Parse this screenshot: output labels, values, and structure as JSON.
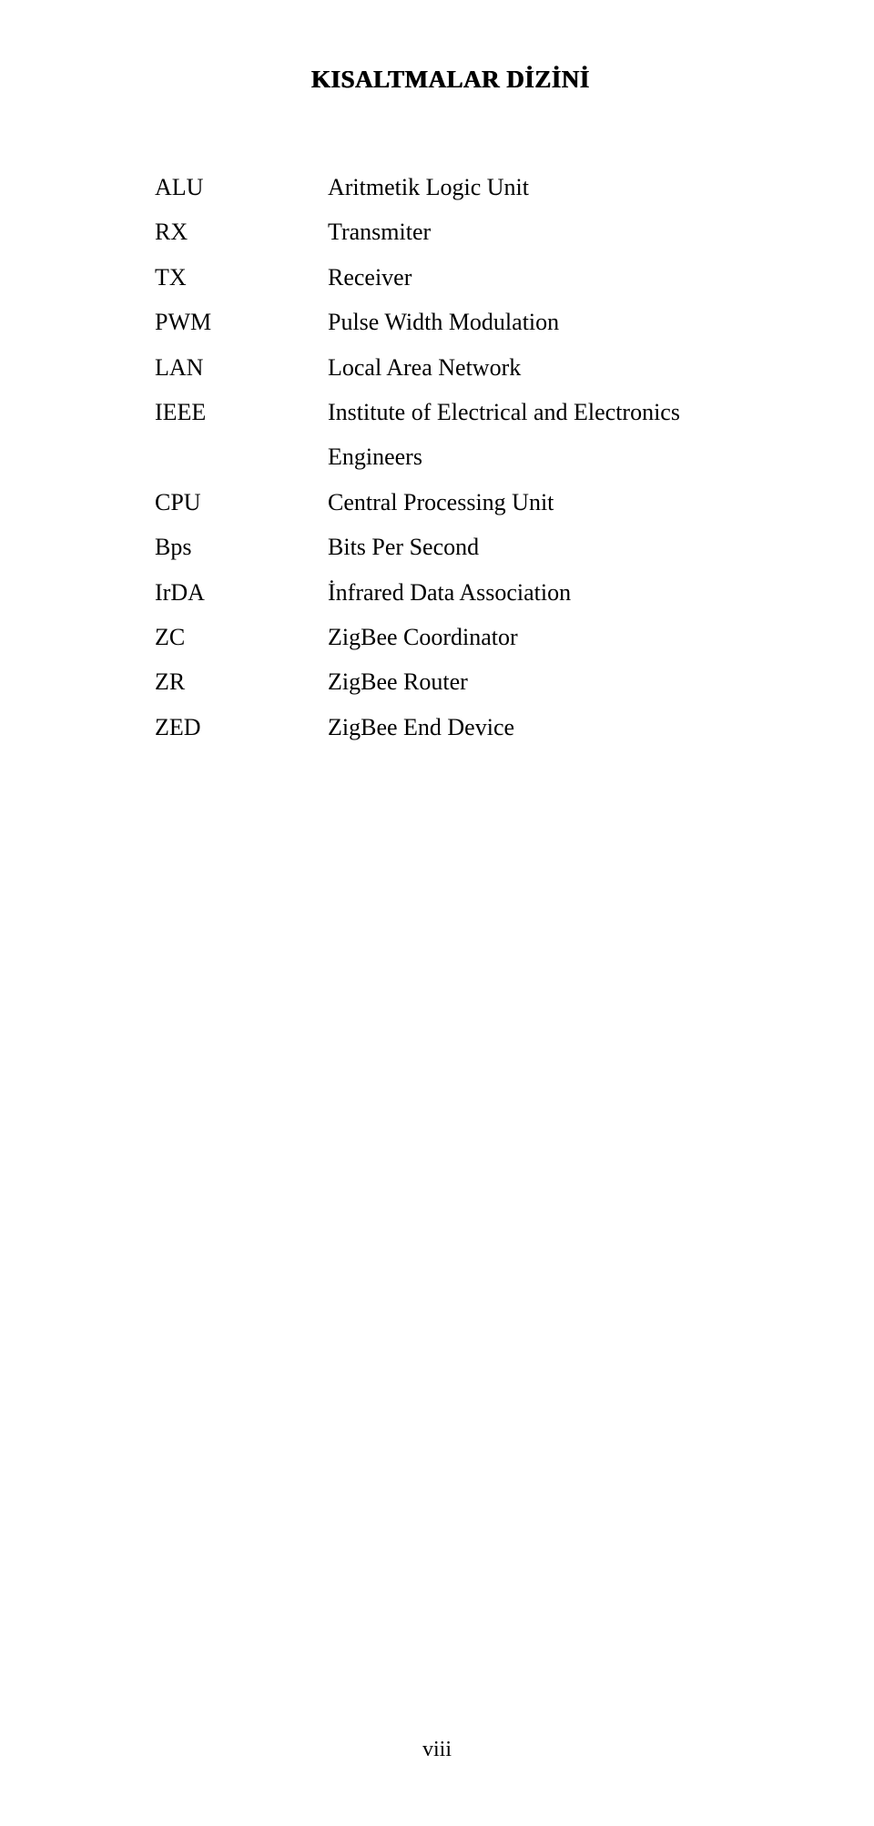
{
  "title": "KISALTMALAR DİZİNİ",
  "rows": [
    {
      "abbr": "ALU",
      "def": "Aritmetik Logic Unit"
    },
    {
      "abbr": "RX",
      "def": "Transmiter"
    },
    {
      "abbr": "TX",
      "def": "Receiver"
    },
    {
      "abbr": "PWM",
      "def": "Pulse Width Modulation"
    },
    {
      "abbr": "LAN",
      "def": "Local Area Network"
    },
    {
      "abbr": "IEEE",
      "def": "Institute of Electrical and  Electronics  Engineers"
    },
    {
      "abbr": "CPU",
      "def": "Central Processing Unit"
    },
    {
      "abbr": "Bps",
      "def": "Bits Per Second"
    },
    {
      "abbr": "IrDA",
      "def": "İnfrared  Data Association"
    },
    {
      "abbr": "ZC",
      "def": "ZigBee Coordinator"
    },
    {
      "abbr": "ZR",
      "def": "ZigBee Router"
    },
    {
      "abbr": "ZED",
      "def": "ZigBee End Device"
    }
  ],
  "page_number": "viii",
  "colors": {
    "background": "#ffffff",
    "text": "#000000"
  },
  "typography": {
    "title_fontsize_pt": 20,
    "body_fontsize_pt": 19,
    "font_family": "Times New Roman"
  }
}
